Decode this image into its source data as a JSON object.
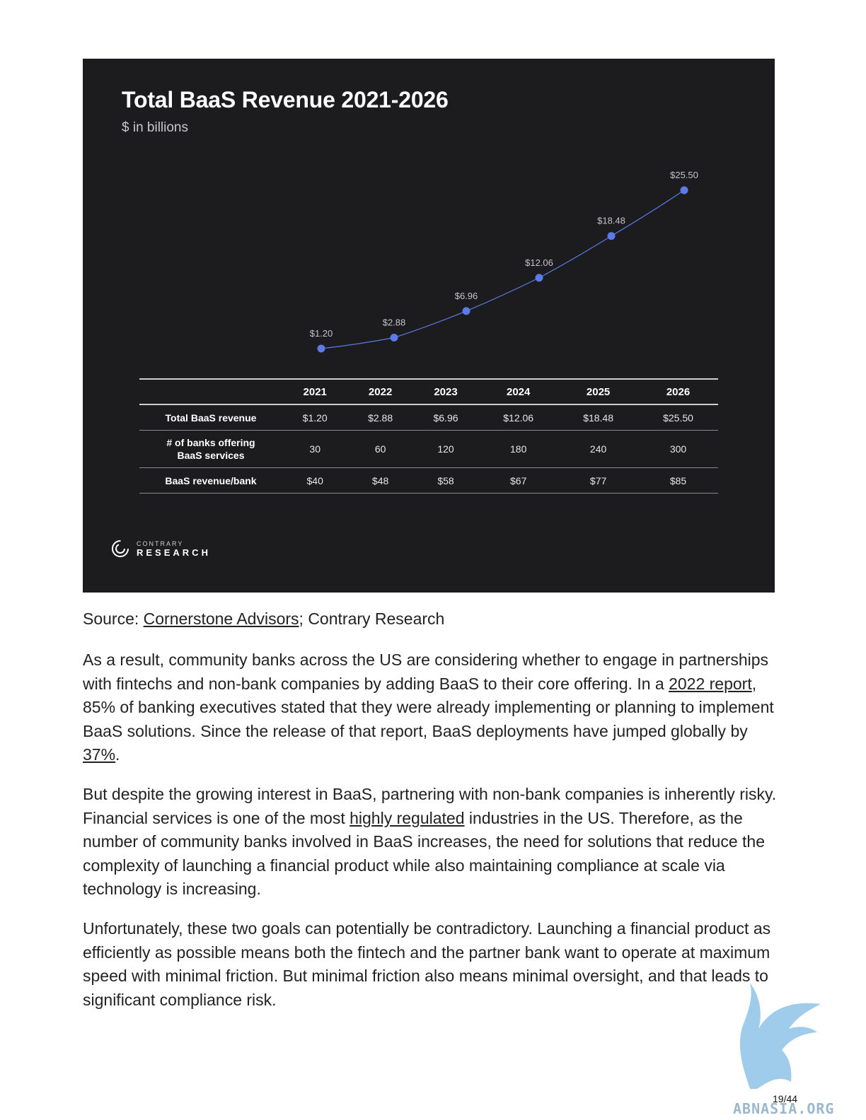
{
  "chart_data": {
    "type": "line",
    "title": "Total BaaS Revenue 2021-2026",
    "subtitle": "$ in billions",
    "categories": [
      "2021",
      "2022",
      "2023",
      "2024",
      "2025",
      "2026"
    ],
    "values": [
      1.2,
      2.88,
      6.96,
      12.06,
      18.48,
      25.5
    ],
    "value_labels": [
      "$1.20",
      "$2.88",
      "$6.96",
      "$12.06",
      "$18.48",
      "$25.50"
    ],
    "grid": false,
    "line_color": "#5b7be8",
    "background": "#1c1c1f"
  },
  "table": {
    "columns": [
      "2021",
      "2022",
      "2023",
      "2024",
      "2025",
      "2026"
    ],
    "rows": [
      {
        "label": "Total BaaS revenue",
        "cells": [
          "$1.20",
          "$2.88",
          "$6.96",
          "$12.06",
          "$18.48",
          "$25.50"
        ]
      },
      {
        "label_line1": "# of banks offering",
        "label_line2": "BaaS services",
        "cells": [
          "30",
          "60",
          "120",
          "180",
          "240",
          "300"
        ]
      },
      {
        "label": "BaaS revenue/bank",
        "cells": [
          "$40",
          "$48",
          "$58",
          "$67",
          "$77",
          "$85"
        ]
      }
    ]
  },
  "logo": {
    "small": "CONTRARY",
    "big": "RESEARCH"
  },
  "source": {
    "prefix": "Source: ",
    "link": "Cornerstone Advisors",
    "suffix": "; Contrary Research"
  },
  "paragraphs": {
    "p1": {
      "a": "As a result, community banks across the US are considering whether to engage in partnerships with fintechs and non-bank companies by adding BaaS to their core offering. In a ",
      "link1": "2022 report",
      "b": ", 85% of banking executives stated that they were already implementing or planning to implement BaaS solutions. Since the release of that report, BaaS deployments have jumped globally by ",
      "link2": "37%",
      "c": "."
    },
    "p2": {
      "a": "But despite the growing interest in BaaS, partnering with non-bank companies is inherently risky. Financial services is one of the most ",
      "link": "highly regulated",
      "b": " industries in the US. Therefore, as the number of community banks involved in BaaS increases, the need for solutions that reduce the complexity of launching a financial product while also maintaining compliance at scale via technology is increasing."
    },
    "p3": "Unfortunately, these two goals can potentially be contradictory. Launching a financial product as efficiently as possible means both the fintech and the partner bank want to operate at maximum speed with minimal friction. But minimal friction also means minimal oversight, and that leads to significant compliance risk."
  },
  "page_number": "19/44",
  "watermark_text": "ABNASIA.ORG"
}
